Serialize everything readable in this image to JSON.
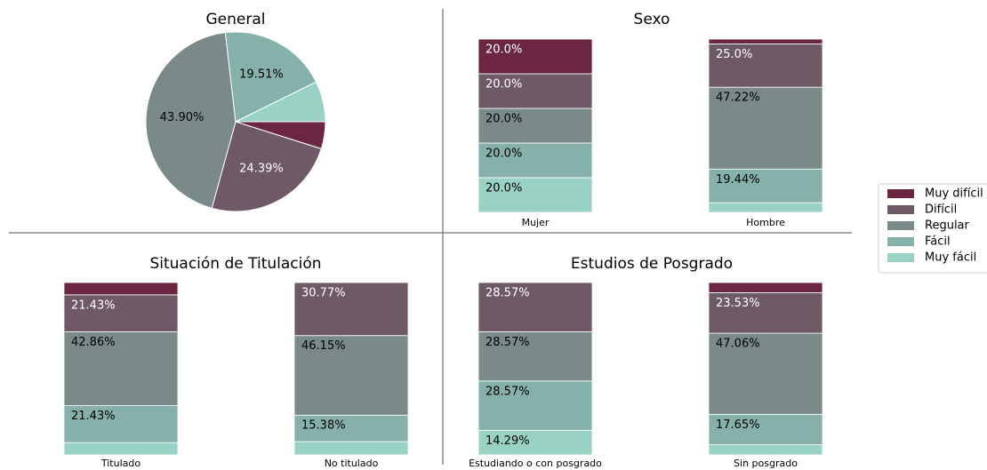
{
  "chart_data": [
    {
      "type": "pie",
      "title": "General",
      "categories": [
        "Muy difícil",
        "Difícil",
        "Regular",
        "Fácil",
        "Muy fácil"
      ],
      "values": [
        4.88,
        24.39,
        43.9,
        19.51,
        7.32
      ],
      "value_labels": [
        null,
        "24.39%",
        "43.90%",
        "19.51%",
        null
      ],
      "colors": [
        "#6b2741",
        "#6e5a66",
        "#7a8a88",
        "#86b0aa",
        "#99d1c4"
      ]
    },
    {
      "type": "bar",
      "stacked": true,
      "title": "Sexo",
      "categories": [
        "Mujer",
        "Hombre"
      ],
      "ylim": [
        0,
        100
      ],
      "series": [
        {
          "name": "Muy difícil",
          "color": "#6b2741",
          "values": [
            20.0,
            2.78
          ],
          "value_labels": [
            "20.0%",
            null
          ]
        },
        {
          "name": "Difícil",
          "color": "#6e5a66",
          "values": [
            20.0,
            25.0
          ],
          "value_labels": [
            "20.0%",
            "25.0%"
          ]
        },
        {
          "name": "Regular",
          "color": "#7a8a88",
          "values": [
            20.0,
            47.22
          ],
          "value_labels": [
            "20.0%",
            "47.22%"
          ]
        },
        {
          "name": "Fácil",
          "color": "#86b0aa",
          "values": [
            20.0,
            19.44
          ],
          "value_labels": [
            "20.0%",
            "19.44%"
          ]
        },
        {
          "name": "Muy fácil",
          "color": "#99d1c4",
          "values": [
            20.0,
            5.56
          ],
          "value_labels": [
            "20.0%",
            null
          ]
        }
      ]
    },
    {
      "type": "bar",
      "stacked": true,
      "title": "Situación de Titulación",
      "categories": [
        "Titulado",
        "No titulado"
      ],
      "ylim": [
        0,
        100
      ],
      "series": [
        {
          "name": "Muy difícil",
          "color": "#6b2741",
          "values": [
            7.14,
            0
          ],
          "value_labels": [
            null,
            null
          ]
        },
        {
          "name": "Difícil",
          "color": "#6e5a66",
          "values": [
            21.43,
            30.77
          ],
          "value_labels": [
            "21.43%",
            "30.77%"
          ]
        },
        {
          "name": "Regular",
          "color": "#7a8a88",
          "values": [
            42.86,
            46.15
          ],
          "value_labels": [
            "42.86%",
            "46.15%"
          ]
        },
        {
          "name": "Fácil",
          "color": "#86b0aa",
          "values": [
            21.43,
            15.38
          ],
          "value_labels": [
            "21.43%",
            "15.38%"
          ]
        },
        {
          "name": "Muy fácil",
          "color": "#99d1c4",
          "values": [
            7.14,
            7.69
          ],
          "value_labels": [
            null,
            null
          ]
        }
      ]
    },
    {
      "type": "bar",
      "stacked": true,
      "title": "Estudios de Posgrado",
      "categories": [
        "Estudiando o con posgrado",
        "Sin posgrado"
      ],
      "ylim": [
        0,
        100
      ],
      "series": [
        {
          "name": "Muy difícil",
          "color": "#6b2741",
          "values": [
            0,
            5.88
          ],
          "value_labels": [
            null,
            null
          ]
        },
        {
          "name": "Difícil",
          "color": "#6e5a66",
          "values": [
            28.57,
            23.53
          ],
          "value_labels": [
            "28.57%",
            "23.53%"
          ]
        },
        {
          "name": "Regular",
          "color": "#7a8a88",
          "values": [
            28.57,
            47.06
          ],
          "value_labels": [
            "28.57%",
            "47.06%"
          ]
        },
        {
          "name": "Fácil",
          "color": "#86b0aa",
          "values": [
            28.57,
            17.65
          ],
          "value_labels": [
            "28.57%",
            "17.65%"
          ]
        },
        {
          "name": "Muy fácil",
          "color": "#99d1c4",
          "values": [
            14.29,
            5.88
          ],
          "value_labels": [
            "14.29%",
            null
          ]
        }
      ]
    }
  ]
}
